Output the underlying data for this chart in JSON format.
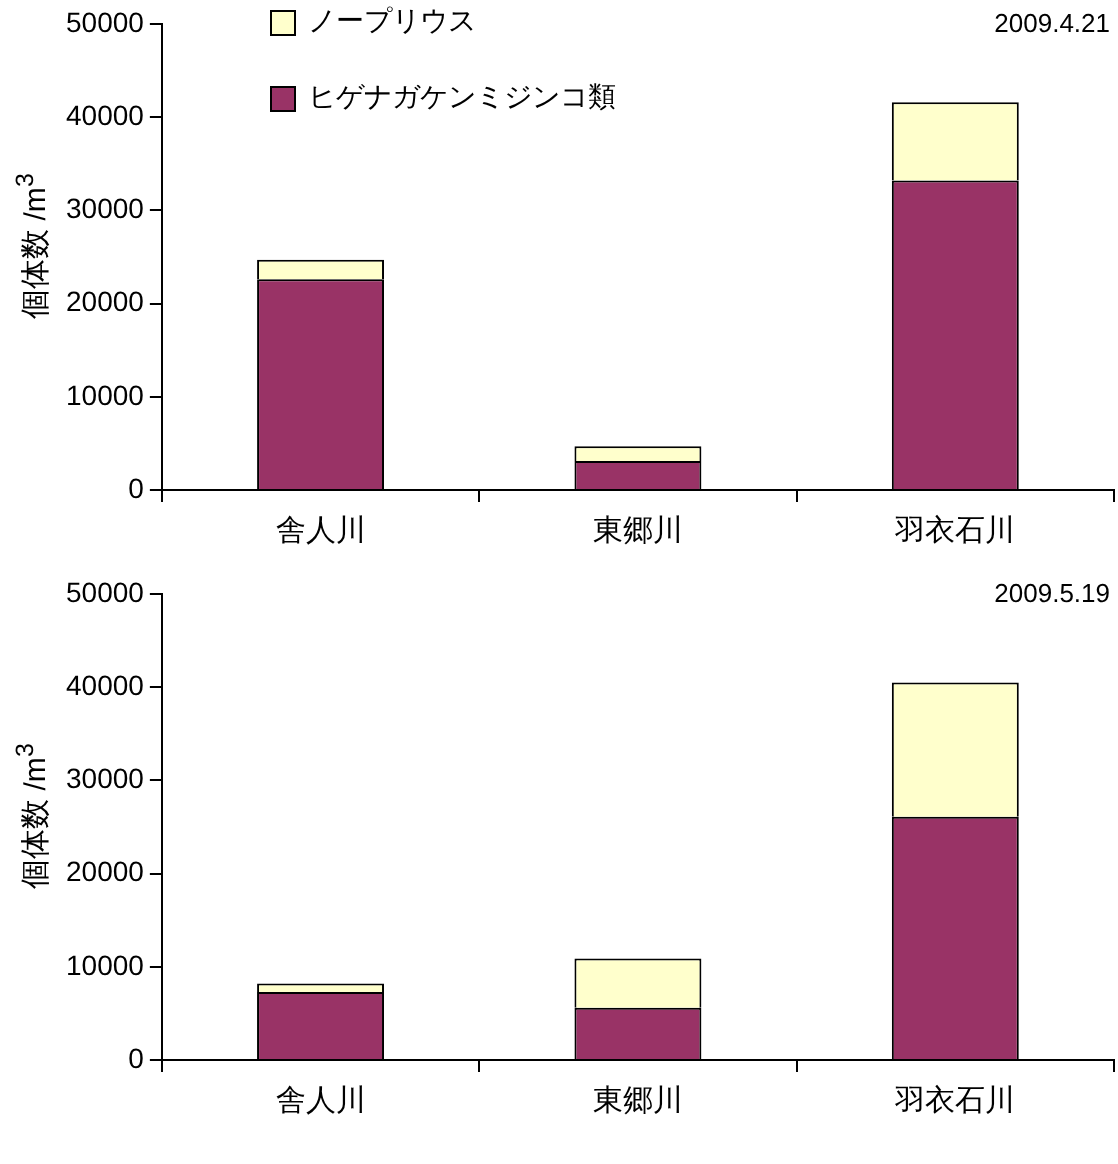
{
  "chart_data": [
    {
      "type": "bar",
      "stacked": true,
      "categories": [
        "舎人川",
        "東郷川",
        "羽衣石川"
      ],
      "ylabel": "個体数 /m$^{3}$",
      "ylim": [
        0,
        50000
      ],
      "yticks": [
        0,
        10000,
        20000,
        30000,
        40000,
        50000
      ],
      "grid": false,
      "legend": "top left",
      "annotations": [
        "2009.4.21"
      ],
      "series": [
        {
          "name": "ヒゲナガケンミジンコ類",
          "color": "#993366",
          "values": [
            22600,
            3100,
            33200
          ]
        },
        {
          "name": "ノープリウス",
          "color": "#ffffcc",
          "values": [
            2100,
            1600,
            8400
          ]
        }
      ]
    },
    {
      "type": "bar",
      "stacked": true,
      "categories": [
        "舎人川",
        "東郷川",
        "羽衣石川"
      ],
      "ylabel": "個体数 /m$^{3}$",
      "ylim": [
        0,
        50000
      ],
      "yticks": [
        0,
        10000,
        20000,
        30000,
        40000,
        50000
      ],
      "grid": false,
      "legend": false,
      "annotations": [
        "2009.5.19"
      ],
      "series": [
        {
          "color": "#993366",
          "values": [
            7300,
            5600,
            26100
          ]
        },
        {
          "color": "#ffffcc",
          "values": [
            900,
            5300,
            14400
          ]
        }
      ]
    }
  ]
}
